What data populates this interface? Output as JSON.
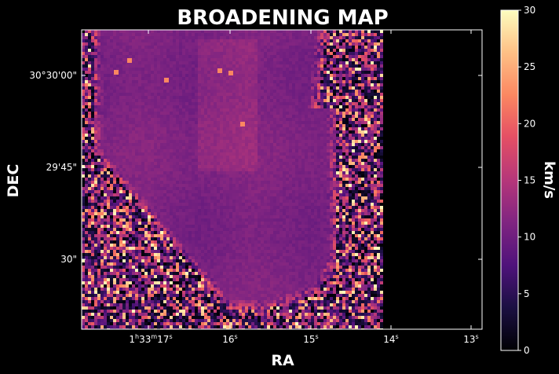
{
  "chart_data": {
    "type": "heatmap",
    "title": "BROADENING MAP",
    "xlabel": "RA",
    "ylabel": "DEC",
    "x_ticks": [
      {
        "h": "1",
        "m": "33",
        "s": "17",
        "label": "1h33m17s"
      },
      {
        "s": "16",
        "label": "16s"
      },
      {
        "s": "15",
        "label": "15s"
      },
      {
        "s": "14",
        "label": "14s"
      },
      {
        "s": "13",
        "label": "13s"
      }
    ],
    "y_ticks": [
      "30°30'00\"",
      "29'45\"",
      "30\""
    ],
    "colorbar": {
      "label": "km/s",
      "range": [
        0,
        30
      ],
      "ticks": [
        0,
        5,
        10,
        15,
        20,
        25,
        30
      ],
      "colormap": "magma"
    },
    "data_description": {
      "smooth_core_value": 11,
      "noisy_edge_max": 30,
      "no_data_color": "#000000"
    }
  }
}
